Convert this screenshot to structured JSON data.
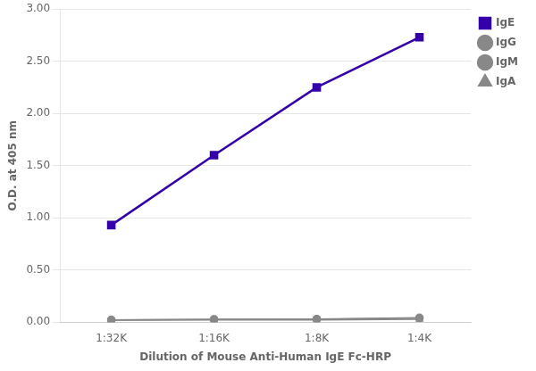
{
  "chart_data": {
    "type": "line",
    "categories": [
      "1:32K",
      "1:16K",
      "1:8K",
      "1:4K"
    ],
    "series": [
      {
        "name": "IgG",
        "color": "#888888",
        "marker": "circle",
        "values": [
          0.02,
          0.025,
          0.028,
          0.038
        ]
      },
      {
        "name": "IgM",
        "color": "#888888",
        "marker": "circle",
        "values": [
          0.022,
          0.028,
          0.03,
          0.042
        ]
      },
      {
        "name": "IgA",
        "color": "#888888",
        "marker": "triangle",
        "values": [
          0.018,
          0.02,
          0.022,
          0.028
        ]
      },
      {
        "name": "IgE",
        "color": "#3300AA",
        "marker": "square",
        "values": [
          0.93,
          1.6,
          2.25,
          2.73
        ]
      }
    ],
    "xlabel": "Dilution of Mouse Anti-Human IgE Fc-HRP",
    "ylabel": "O.D. at 405 nm",
    "ylim": [
      0.0,
      3.0
    ],
    "yticks": [
      {
        "value": 0.0,
        "label": "0.00"
      },
      {
        "value": 0.5,
        "label": "0.50"
      },
      {
        "value": 1.0,
        "label": "1.00"
      },
      {
        "value": 1.5,
        "label": "1.50"
      },
      {
        "value": 2.0,
        "label": "2.00"
      },
      {
        "value": 2.5,
        "label": "2.50"
      },
      {
        "value": 3.0,
        "label": "3.00"
      }
    ],
    "grid": "y",
    "legend": "right"
  }
}
